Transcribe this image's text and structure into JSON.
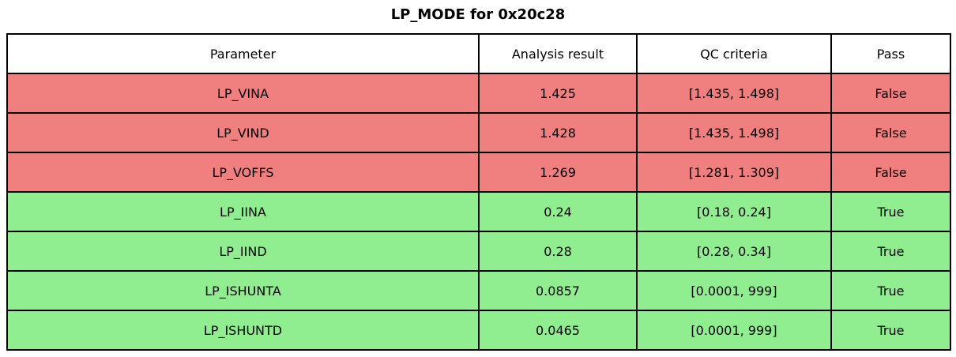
{
  "title": "LP_MODE for 0x20c28",
  "colors": {
    "fail": "#F08080",
    "pass": "#90EE90",
    "header": "#FFFFFF",
    "border": "#000000"
  },
  "chart_data": {
    "type": "table",
    "title": "LP_MODE for 0x20c28",
    "headers": [
      "Parameter",
      "Analysis result",
      "QC criteria",
      "Pass"
    ],
    "rows": [
      {
        "parameter": "LP_VINA",
        "result": "1.425",
        "criteria": "[1.435, 1.498]",
        "pass": "False",
        "status": "fail"
      },
      {
        "parameter": "LP_VIND",
        "result": "1.428",
        "criteria": "[1.435, 1.498]",
        "pass": "False",
        "status": "fail"
      },
      {
        "parameter": "LP_VOFFS",
        "result": "1.269",
        "criteria": "[1.281, 1.309]",
        "pass": "False",
        "status": "fail"
      },
      {
        "parameter": "LP_IINA",
        "result": "0.24",
        "criteria": "[0.18, 0.24]",
        "pass": "True",
        "status": "pass"
      },
      {
        "parameter": "LP_IIND",
        "result": "0.28",
        "criteria": "[0.28, 0.34]",
        "pass": "True",
        "status": "pass"
      },
      {
        "parameter": "LP_ISHUNTA",
        "result": "0.0857",
        "criteria": "[0.0001, 999]",
        "pass": "True",
        "status": "pass"
      },
      {
        "parameter": "LP_ISHUNTD",
        "result": "0.0465",
        "criteria": "[0.0001, 999]",
        "pass": "True",
        "status": "pass"
      }
    ]
  }
}
